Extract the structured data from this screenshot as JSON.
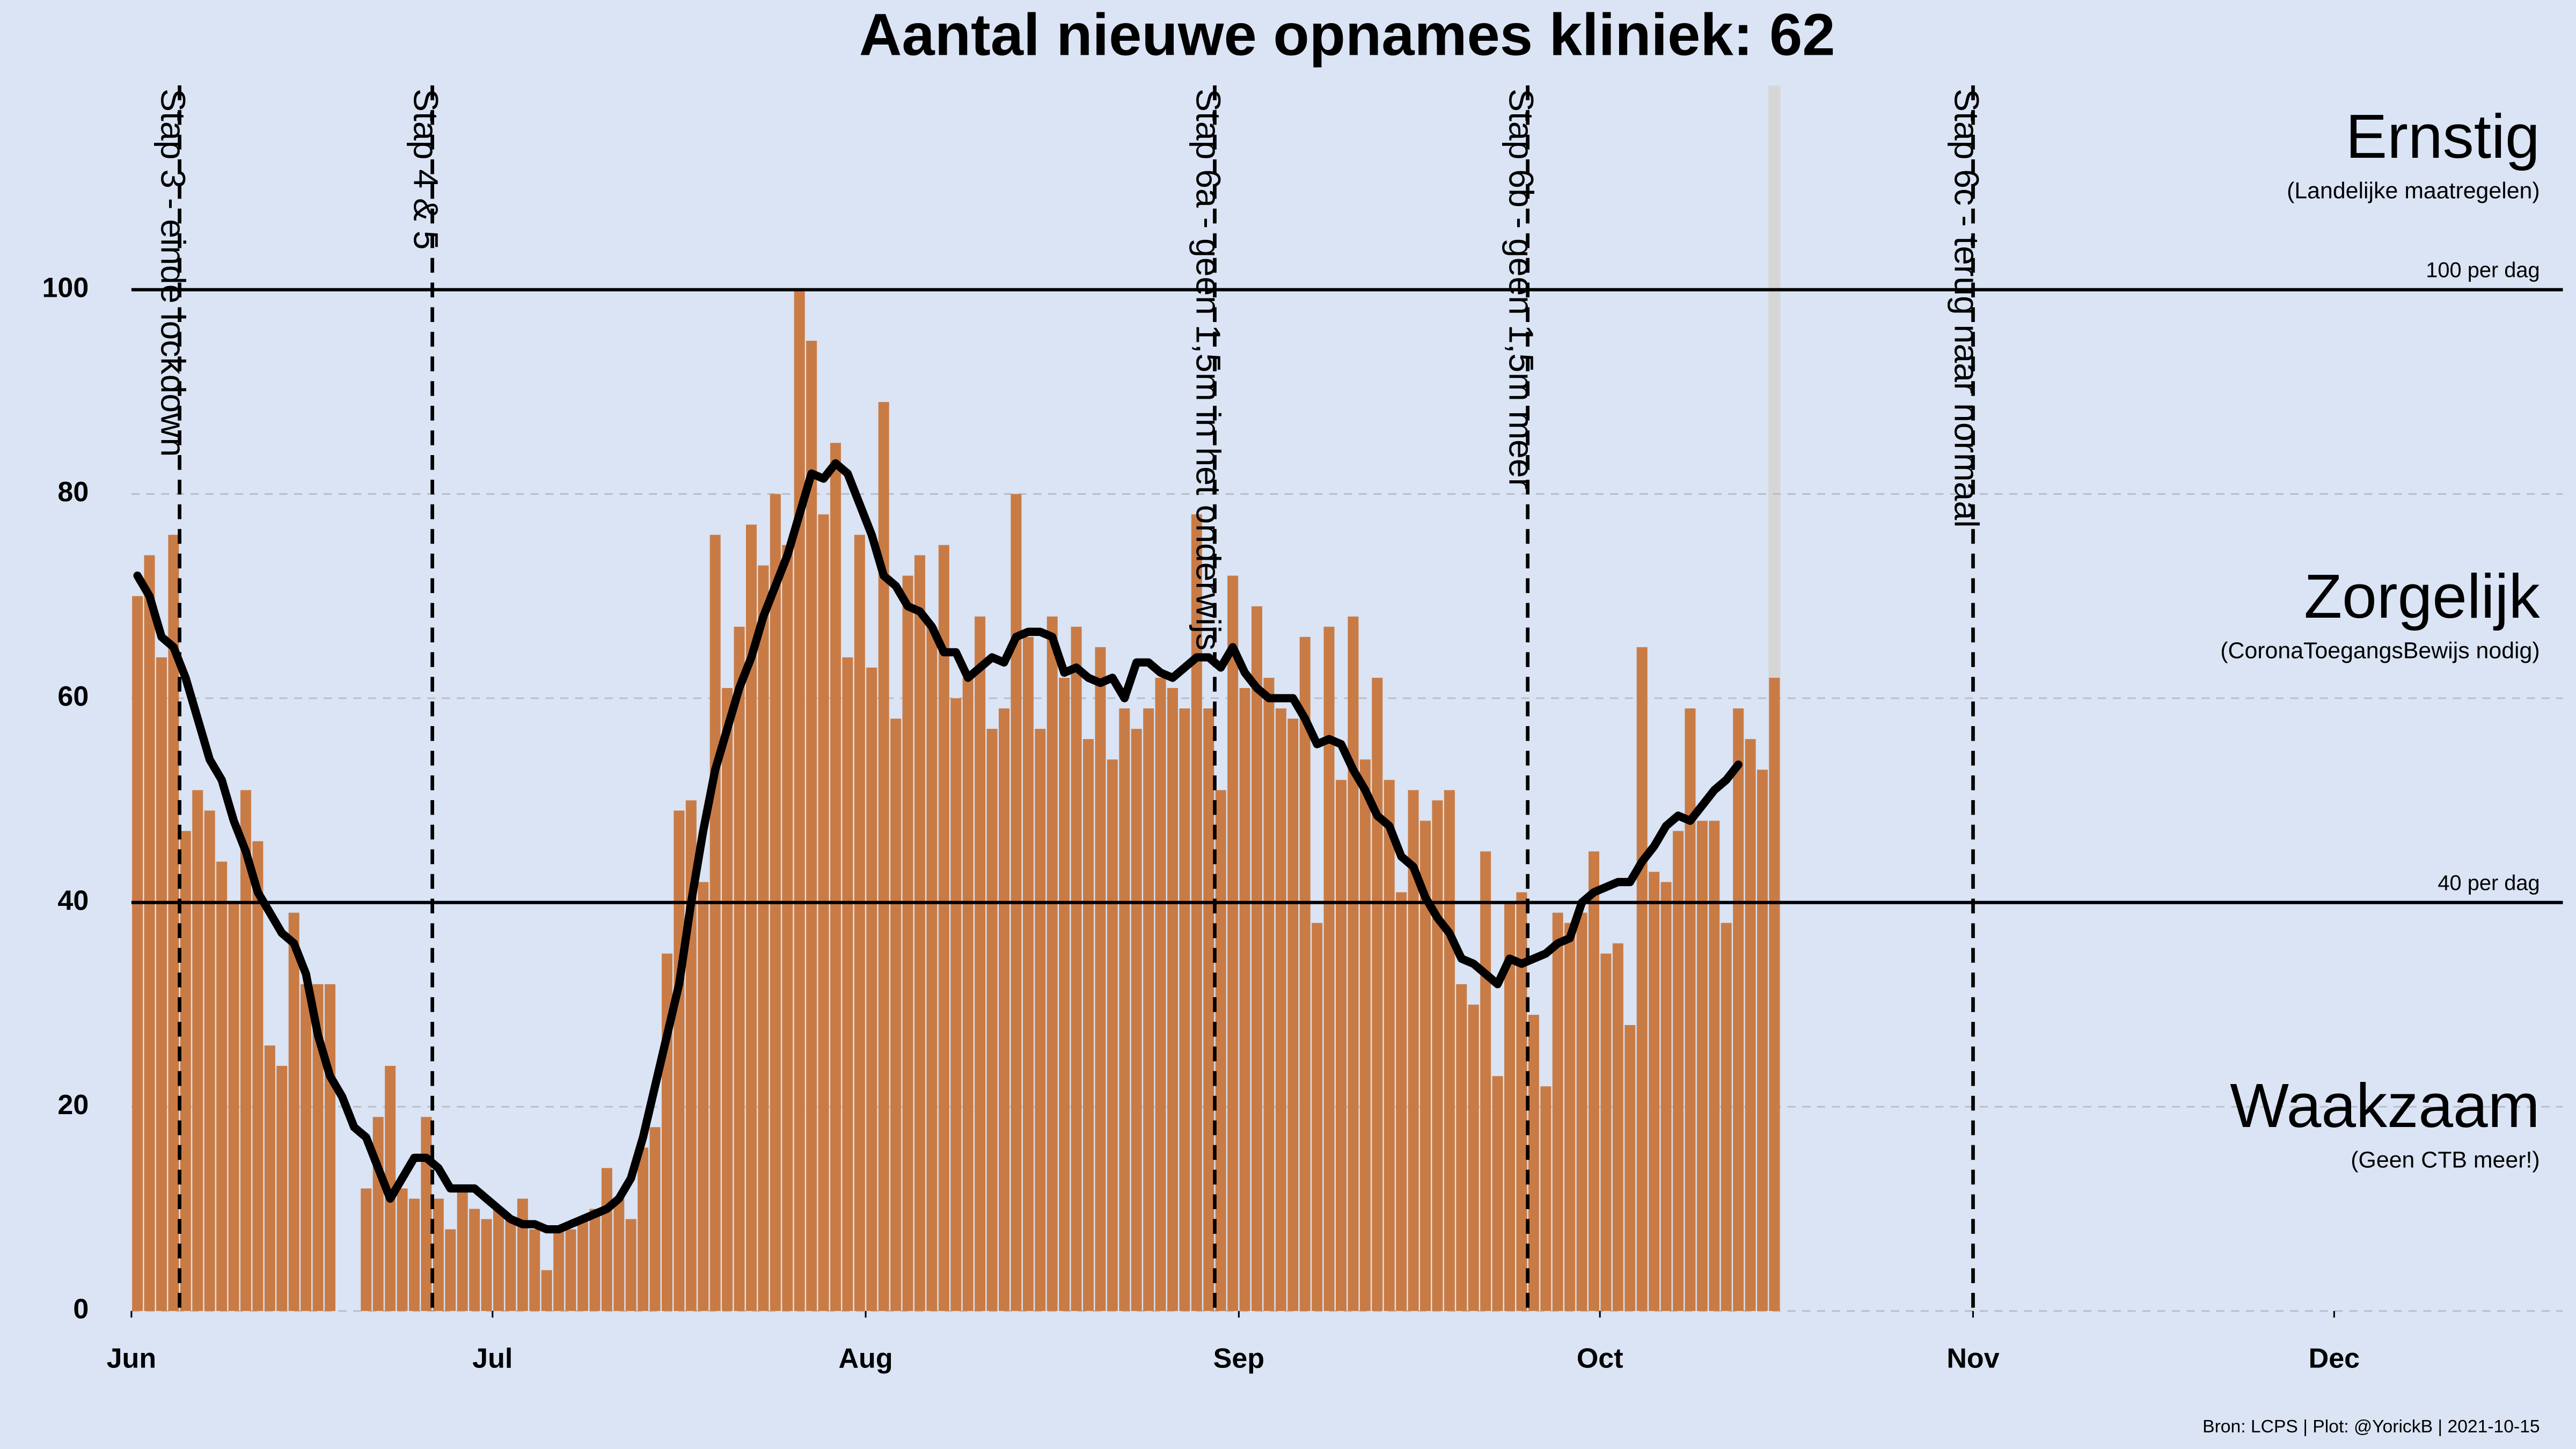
{
  "chart_data": {
    "type": "bar",
    "title": "Aantal nieuwe opnames kliniek:  62",
    "footer": "Bron: LCPS | Plot: @YorickB |  2021-10-15",
    "x": [
      "2021-06-01",
      "2021-06-02",
      "2021-06-03",
      "2021-06-04",
      "2021-06-05",
      "2021-06-06",
      "2021-06-07",
      "2021-06-08",
      "2021-06-09",
      "2021-06-10",
      "2021-06-11",
      "2021-06-12",
      "2021-06-13",
      "2021-06-14",
      "2021-06-15",
      "2021-06-16",
      "2021-06-17",
      "2021-06-18",
      "2021-06-19",
      "2021-06-20",
      "2021-06-21",
      "2021-06-22",
      "2021-06-23",
      "2021-06-24",
      "2021-06-25",
      "2021-06-26",
      "2021-06-27",
      "2021-06-28",
      "2021-06-29",
      "2021-06-30",
      "2021-07-01",
      "2021-07-02",
      "2021-07-03",
      "2021-07-04",
      "2021-07-05",
      "2021-07-06",
      "2021-07-07",
      "2021-07-08",
      "2021-07-09",
      "2021-07-10",
      "2021-07-11",
      "2021-07-12",
      "2021-07-13",
      "2021-07-14",
      "2021-07-15",
      "2021-07-16",
      "2021-07-17",
      "2021-07-18",
      "2021-07-19",
      "2021-07-20",
      "2021-07-21",
      "2021-07-22",
      "2021-07-23",
      "2021-07-24",
      "2021-07-25",
      "2021-07-26",
      "2021-07-27",
      "2021-07-28",
      "2021-07-29",
      "2021-07-30",
      "2021-07-31",
      "2021-08-01",
      "2021-08-02",
      "2021-08-03",
      "2021-08-04",
      "2021-08-05",
      "2021-08-06",
      "2021-08-07",
      "2021-08-08",
      "2021-08-09",
      "2021-08-10",
      "2021-08-11",
      "2021-08-12",
      "2021-08-13",
      "2021-08-14",
      "2021-08-15",
      "2021-08-16",
      "2021-08-17",
      "2021-08-18",
      "2021-08-19",
      "2021-08-20",
      "2021-08-21",
      "2021-08-22",
      "2021-08-23",
      "2021-08-24",
      "2021-08-25",
      "2021-08-26",
      "2021-08-27",
      "2021-08-28",
      "2021-08-29",
      "2021-08-30",
      "2021-08-31",
      "2021-09-01",
      "2021-09-02",
      "2021-09-03",
      "2021-09-04",
      "2021-09-05",
      "2021-09-06",
      "2021-09-07",
      "2021-09-08",
      "2021-09-09",
      "2021-09-10",
      "2021-09-11",
      "2021-09-12",
      "2021-09-13",
      "2021-09-14",
      "2021-09-15",
      "2021-09-16",
      "2021-09-17",
      "2021-09-18",
      "2021-09-19",
      "2021-09-20",
      "2021-09-21",
      "2021-09-22",
      "2021-09-23",
      "2021-09-24",
      "2021-09-25",
      "2021-09-26",
      "2021-09-27",
      "2021-09-28",
      "2021-09-29",
      "2021-09-30",
      "2021-10-01",
      "2021-10-02",
      "2021-10-03",
      "2021-10-04",
      "2021-10-05",
      "2021-10-06",
      "2021-10-07",
      "2021-10-08",
      "2021-10-09",
      "2021-10-10",
      "2021-10-11",
      "2021-10-12",
      "2021-10-13",
      "2021-10-14",
      "2021-10-15"
    ],
    "series": [
      {
        "type": "bar",
        "color": "#c97b45",
        "values": [
          70,
          74,
          64,
          76,
          47,
          51,
          49,
          44,
          40,
          51,
          46,
          26,
          24,
          39,
          32,
          32,
          32,
          null,
          null,
          12,
          19,
          24,
          12,
          11,
          19,
          11,
          8,
          12,
          10,
          9,
          10,
          9,
          11,
          8,
          4,
          8,
          8,
          9,
          10,
          14,
          11,
          9,
          16,
          18,
          35,
          49,
          50,
          42,
          76,
          61,
          67,
          77,
          73,
          80,
          75,
          100,
          95,
          78,
          85,
          64,
          76,
          63,
          89,
          58,
          72,
          74,
          67,
          75,
          60,
          62,
          68,
          57,
          59,
          80,
          66,
          57,
          68,
          62,
          67,
          56,
          65,
          54,
          59,
          57,
          59,
          62,
          61,
          59,
          78,
          59,
          51,
          72,
          61,
          69,
          62,
          59,
          58,
          66,
          38,
          67,
          52,
          68,
          54,
          62,
          52,
          41,
          51,
          48,
          50,
          51,
          32,
          30,
          45,
          23,
          40,
          41,
          29,
          22,
          39,
          38,
          39,
          45,
          35,
          36,
          28,
          65,
          43,
          42,
          47,
          59,
          48,
          48,
          38,
          59,
          56,
          53,
          62
        ]
      },
      {
        "type": "line",
        "color": "#000000",
        "values": [
          72,
          70,
          66,
          65,
          62,
          58,
          54,
          52,
          48,
          45,
          41,
          39,
          37,
          36,
          33,
          27,
          23,
          21,
          18,
          17,
          14,
          11,
          13,
          15,
          15,
          14,
          12,
          12,
          12,
          11,
          10,
          9,
          8.5,
          8.5,
          8,
          8,
          8.5,
          9,
          9.5,
          10,
          11,
          13,
          17,
          22,
          27,
          32,
          40,
          47,
          53,
          57,
          61,
          64,
          68,
          71,
          74,
          78,
          82,
          81.5,
          83,
          82,
          79,
          76,
          72,
          71,
          69,
          68.5,
          67,
          64.5,
          64.5,
          62,
          63,
          64,
          63.5,
          66,
          66.5,
          66.5,
          66,
          62.5,
          63,
          62,
          61.5,
          62,
          60,
          63.5,
          63.5,
          62.5,
          62,
          63,
          64,
          64,
          63,
          65,
          62.5,
          61,
          60,
          60,
          60,
          58,
          55.5,
          56,
          55.5,
          53,
          51,
          48.5,
          47.5,
          44.5,
          43.5,
          40.5,
          38.5,
          37,
          34.5,
          34,
          33,
          32,
          34.5,
          34,
          34.5,
          35,
          36,
          36.5,
          40,
          41,
          41.5,
          42,
          42,
          44,
          45.5,
          47.5,
          48.5,
          48,
          49.5,
          51,
          52,
          53.5,
          null,
          null,
          null
        ]
      }
    ],
    "xlim": [
      "2021-06-01",
      "2021-12-20"
    ],
    "xticks": [
      {
        "value": "2021-06-01",
        "label": "Jun"
      },
      {
        "value": "2021-07-01",
        "label": "Jul"
      },
      {
        "value": "2021-08-01",
        "label": "Aug"
      },
      {
        "value": "2021-09-01",
        "label": "Sep"
      },
      {
        "value": "2021-10-01",
        "label": "Oct"
      },
      {
        "value": "2021-11-01",
        "label": "Nov"
      },
      {
        "value": "2021-12-01",
        "label": "Dec"
      }
    ],
    "ylim": [
      0,
      120
    ],
    "yticks": [
      0,
      20,
      40,
      60,
      80,
      100
    ],
    "grid": true,
    "thresholds": [
      {
        "value": 100,
        "label": "100 per dag"
      },
      {
        "value": 40,
        "label": "40 per dag"
      }
    ],
    "events": [
      {
        "date": "2021-06-05",
        "label": "Stap 3 - einde lockdown"
      },
      {
        "date": "2021-06-26",
        "label": "Stap 4 & 5"
      },
      {
        "date": "2021-08-30",
        "label": "Stap 6a - geen 1,5m in het onderwijs"
      },
      {
        "date": "2021-09-25",
        "label": "Stap 6b - geen 1,5m meer"
      },
      {
        "date": "2021-11-01",
        "label": "Stap 6c - terug naar normaal"
      }
    ],
    "zones": [
      {
        "name": "Ernstig",
        "note": "(Landelijke maatregelen)"
      },
      {
        "name": "Zorgelijk",
        "note": "(CoronaToegangsBewijs nodig)"
      },
      {
        "name": "Waakzaam",
        "note": "(Geen CTB meer!)"
      }
    ]
  }
}
